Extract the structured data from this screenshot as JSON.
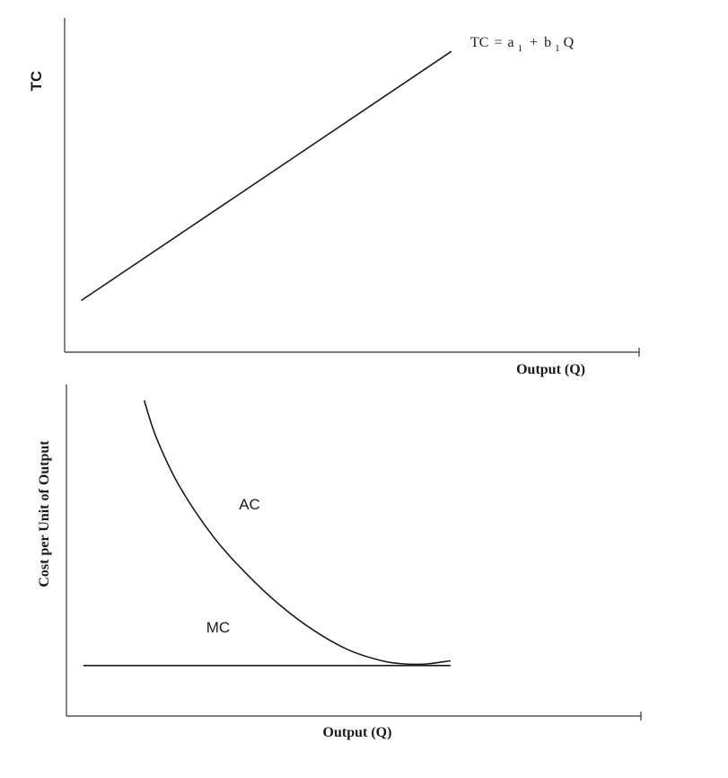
{
  "chart_data": [
    {
      "type": "line",
      "ylabel": "TC",
      "xlabel": "Output (Q)",
      "series": [
        {
          "label": "TC = a₁ + b₁Q",
          "points": [
            [
              0.3,
              0.17
            ],
            [
              7.0,
              0.99
            ]
          ]
        }
      ],
      "xlim": [
        0,
        10.4
      ],
      "ylim": [
        0,
        1.1
      ],
      "grid": false,
      "axis_ticks_shown": false,
      "equation_parts": {
        "lhs": "TC",
        "a": "a",
        "plus": "+",
        "b": "b",
        "sub": "1",
        "q": "Q"
      }
    },
    {
      "type": "line",
      "ylabel": "Cost per Unit of Output",
      "xlabel": "Output (Q)",
      "series": [
        {
          "name": "AC",
          "points": [
            [
              1.38,
              1.0
            ],
            [
              1.6,
              0.88
            ],
            [
              2.0,
              0.73
            ],
            [
              2.6,
              0.57
            ],
            [
              3.2,
              0.45
            ],
            [
              3.8,
              0.35
            ],
            [
              4.4,
              0.27
            ],
            [
              5.0,
              0.21
            ],
            [
              5.6,
              0.175
            ],
            [
              6.0,
              0.165
            ],
            [
              6.4,
              0.165
            ],
            [
              6.82,
              0.175
            ]
          ]
        },
        {
          "name": "MC",
          "points": [
            [
              0.3,
              0.16
            ],
            [
              6.82,
              0.16
            ]
          ]
        }
      ],
      "xlim": [
        0,
        10.2
      ],
      "ylim": [
        0,
        1.05
      ],
      "grid": false,
      "axis_ticks_shown": false
    }
  ]
}
